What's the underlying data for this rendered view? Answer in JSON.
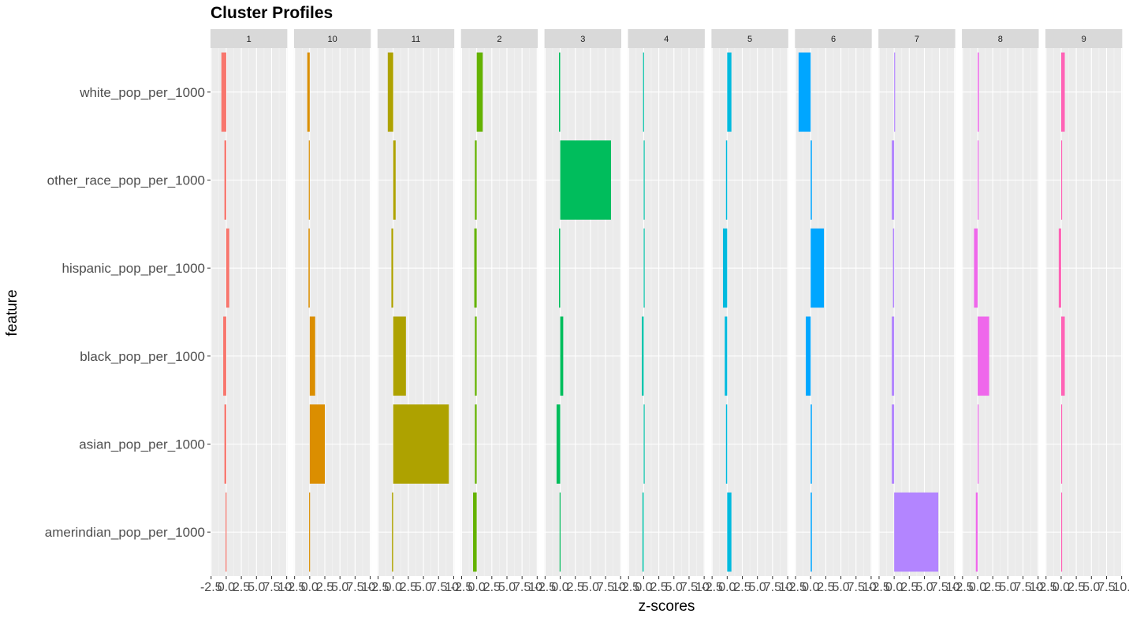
{
  "chart_data": {
    "type": "bar",
    "orientation": "horizontal",
    "faceted": true,
    "title": "Cluster Profiles",
    "xlabel": "z-scores",
    "ylabel": "feature",
    "xlim": [
      -2.6,
      10.1
    ],
    "xticks": [
      -2.5,
      0.0,
      2.5,
      5.0,
      7.5,
      10.0
    ],
    "xtick_labels": [
      "-2.5",
      "0.0",
      "2.5",
      "5.0",
      "7.5",
      "10."
    ],
    "grid": true,
    "legend": "none",
    "features": [
      "white_pop_per_1000",
      "other_race_pop_per_1000",
      "hispanic_pop_per_1000",
      "black_pop_per_1000",
      "asian_pop_per_1000",
      "amerindian_pop_per_1000"
    ],
    "panels": [
      {
        "cluster": "1",
        "color": "#F8766D",
        "values": [
          -0.8,
          -0.3,
          0.5,
          -0.5,
          -0.3,
          -0.1
        ]
      },
      {
        "cluster": "10",
        "color": "#DB8E00",
        "values": [
          -0.4,
          -0.15,
          -0.2,
          0.9,
          2.5,
          -0.1
        ]
      },
      {
        "cluster": "11",
        "color": "#AEA200",
        "values": [
          -0.9,
          0.4,
          -0.3,
          2.1,
          9.2,
          -0.2
        ]
      },
      {
        "cluster": "2",
        "color": "#64B200",
        "values": [
          1.0,
          -0.3,
          -0.4,
          -0.3,
          -0.3,
          -0.6
        ]
      },
      {
        "cluster": "3",
        "color": "#00BD5C",
        "values": [
          -0.2,
          8.4,
          -0.2,
          0.5,
          -0.6,
          -0.1
        ]
      },
      {
        "cluster": "4",
        "color": "#00C1A7",
        "values": [
          -0.1,
          0.1,
          0.1,
          -0.3,
          0.1,
          -0.2
        ]
      },
      {
        "cluster": "5",
        "color": "#00BADE",
        "values": [
          0.7,
          -0.2,
          -0.7,
          -0.4,
          -0.2,
          0.7
        ]
      },
      {
        "cluster": "6",
        "color": "#00A6FF",
        "values": [
          -2.0,
          0.2,
          2.2,
          -0.8,
          0.2,
          0.2
        ]
      },
      {
        "cluster": "7",
        "color": "#B385FF",
        "values": [
          0.1,
          -0.4,
          -0.2,
          -0.4,
          -0.4,
          7.3
        ]
      },
      {
        "cluster": "8",
        "color": "#EF67EB",
        "values": [
          0.2,
          0.1,
          -0.6,
          1.9,
          0.1,
          -0.3
        ]
      },
      {
        "cluster": "9",
        "color": "#FF63B6",
        "values": [
          0.6,
          0.0,
          -0.4,
          0.6,
          0.1,
          0.0
        ]
      }
    ]
  }
}
